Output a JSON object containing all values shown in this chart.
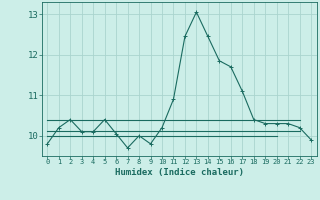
{
  "xlabel": "Humidex (Indice chaleur)",
  "ylabel": "",
  "background_color": "#cceee8",
  "grid_color": "#aad4ce",
  "line_color": "#1a6b60",
  "xlim": [
    -0.5,
    23.5
  ],
  "ylim": [
    9.5,
    13.3
  ],
  "yticks": [
    10,
    11,
    12,
    13
  ],
  "xticks": [
    0,
    1,
    2,
    3,
    4,
    5,
    6,
    7,
    8,
    9,
    10,
    11,
    12,
    13,
    14,
    15,
    16,
    17,
    18,
    19,
    20,
    21,
    22,
    23
  ],
  "series": [
    {
      "x": [
        0,
        1,
        2,
        3,
        4,
        5,
        6,
        7,
        8,
        9,
        10,
        11,
        12,
        13,
        14,
        15,
        16,
        17,
        18,
        19,
        20,
        21,
        22,
        23
      ],
      "y": [
        9.8,
        10.2,
        10.4,
        10.1,
        10.1,
        10.4,
        10.05,
        9.7,
        10.0,
        9.8,
        10.2,
        10.9,
        12.45,
        13.05,
        12.45,
        11.85,
        11.7,
        11.1,
        10.4,
        10.3,
        10.3,
        10.3,
        10.2,
        9.9
      ],
      "marker": "+"
    },
    {
      "x": [
        0,
        22
      ],
      "y": [
        10.38,
        10.38
      ],
      "marker": null
    },
    {
      "x": [
        0,
        22
      ],
      "y": [
        10.12,
        10.12
      ],
      "marker": null
    },
    {
      "x": [
        0,
        20
      ],
      "y": [
        10.0,
        10.0
      ],
      "marker": null
    }
  ]
}
